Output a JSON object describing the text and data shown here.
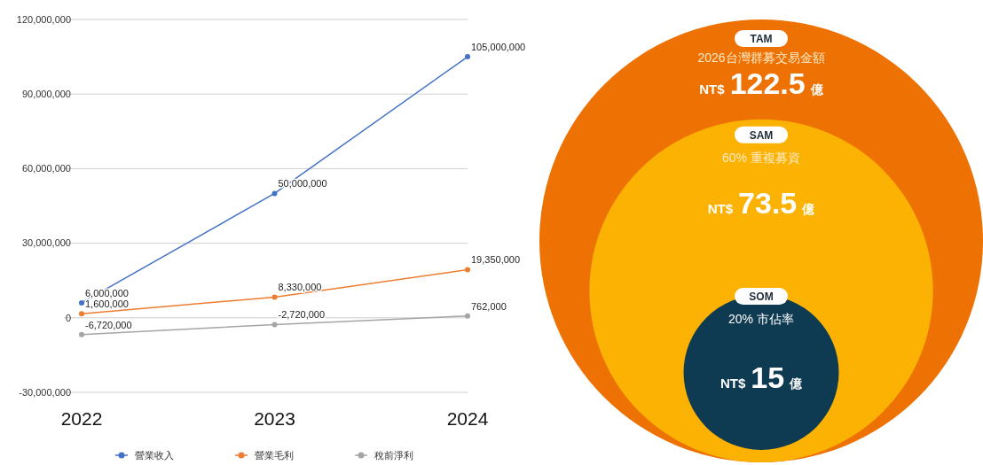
{
  "chart_data": [
    {
      "type": "line",
      "categories": [
        "2022",
        "2023",
        "2024"
      ],
      "series": [
        {
          "name": "營業收入",
          "color": "#4472c4",
          "values": [
            6000000,
            50000000,
            105000000
          ],
          "value_labels": [
            "6,000,000",
            "50,000,000",
            "105,000,000"
          ]
        },
        {
          "name": "營業毛利",
          "color": "#ed7d31",
          "values": [
            1600000,
            8330000,
            19350000
          ],
          "value_labels": [
            "1,600,000",
            "8,330,000",
            "19,350,000"
          ]
        },
        {
          "name": "稅前淨利",
          "color": "#a5a5a5",
          "values": [
            -6720000,
            -2720000,
            762000
          ],
          "value_labels": [
            "-6,720,000",
            "-2,720,000",
            "762,000"
          ]
        }
      ],
      "ylim": [
        -30000000,
        120000000
      ],
      "yticks": [
        {
          "value": -30000000,
          "label": "-30,000,000"
        },
        {
          "value": 0,
          "label": "0"
        },
        {
          "value": 30000000,
          "label": "30,000,000"
        },
        {
          "value": 60000000,
          "label": "60,000,000"
        },
        {
          "value": 90000000,
          "label": "90,000,000"
        },
        {
          "value": 120000000,
          "label": "120,000,000"
        }
      ],
      "grid": "y",
      "legend": "bottom",
      "marker": "circle"
    },
    {
      "type": "other",
      "categories": [
        "2026台灣群募交易金額",
        "60% 重複募資",
        "20% 市佔率"
      ],
      "values": [
        122.5,
        73.5,
        15
      ],
      "colors": [
        "#ee7203",
        "#fbb203",
        "#0e3a52"
      ],
      "annotations": [
        "TAM",
        "SAM",
        "SOM"
      ],
      "value_labels": [
        "NT$ 122.5 億",
        "NT$ 73.5 億",
        "NT$ 15 億"
      ]
    }
  ]
}
